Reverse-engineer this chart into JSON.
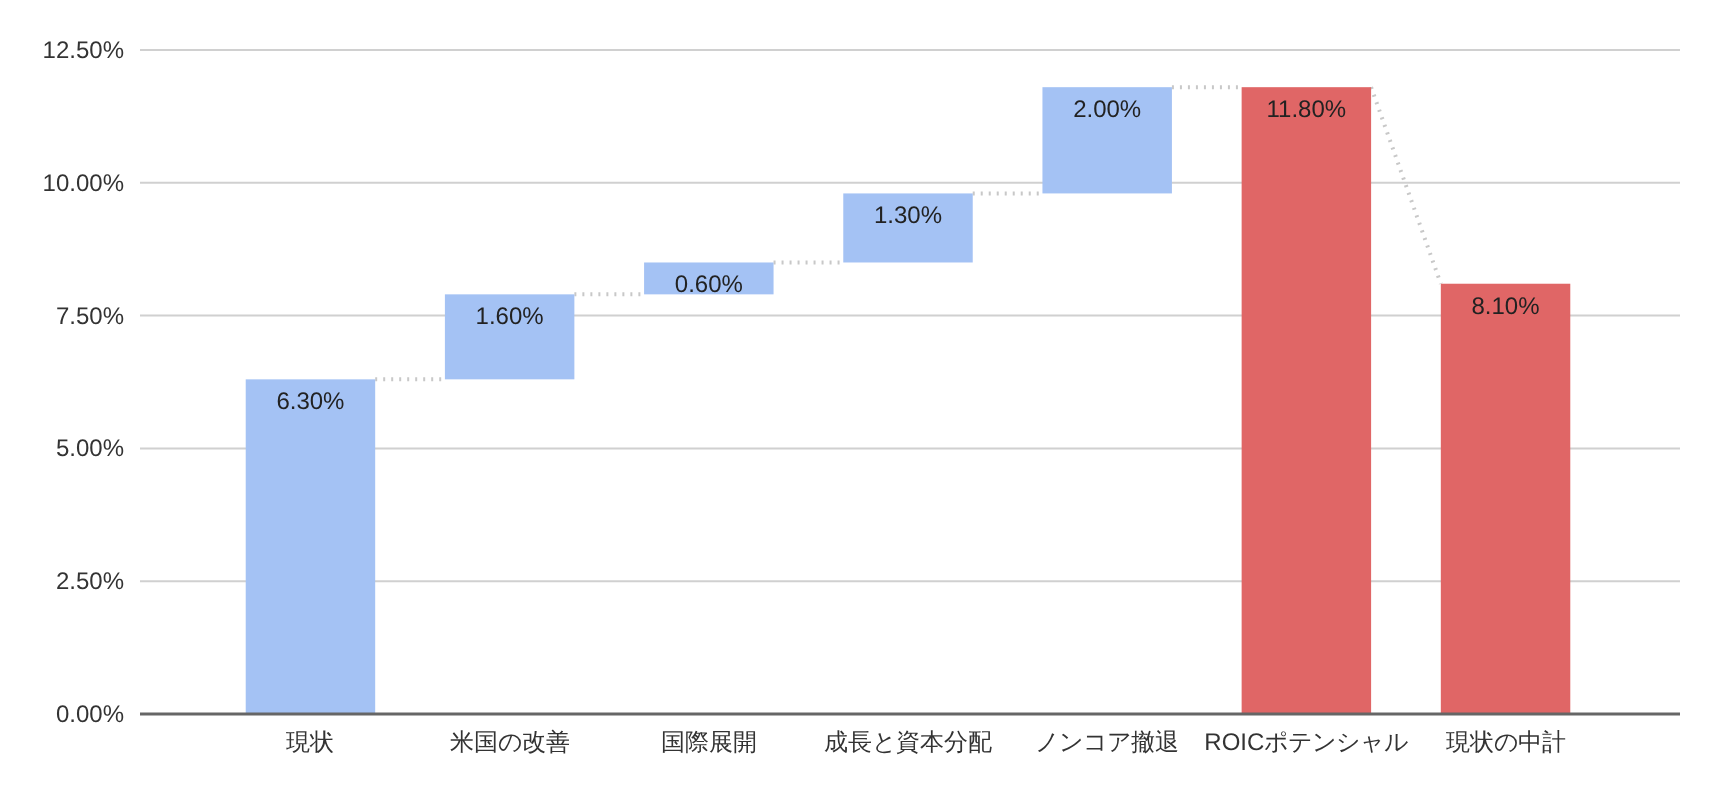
{
  "chart_data": {
    "type": "bar",
    "categories": [
      "現状",
      "米国の改善",
      "国際展開",
      "成長と資本分配",
      "ノンコア撤退",
      "ROICポテンシャル",
      "現状の中計"
    ],
    "values": [
      6.3,
      1.6,
      0.6,
      1.3,
      2.0,
      11.8,
      8.1
    ],
    "base": [
      0,
      6.3,
      7.9,
      8.5,
      9.8,
      0,
      0
    ],
    "colors": [
      "#a4c2f4",
      "#a4c2f4",
      "#a4c2f4",
      "#a4c2f4",
      "#a4c2f4",
      "#e06666",
      "#e06666"
    ],
    "value_labels": [
      "6.30%",
      "1.60%",
      "0.60%",
      "1.30%",
      "2.00%",
      "11.80%",
      "8.10%"
    ],
    "ylim": [
      0,
      12.5
    ],
    "yticks": [
      {
        "value": 0,
        "label": "0.00%"
      },
      {
        "value": 2.5,
        "label": "2.50%"
      },
      {
        "value": 5,
        "label": "5.00%"
      },
      {
        "value": 7.5,
        "label": "7.50%"
      },
      {
        "value": 10,
        "label": "10.00%"
      },
      {
        "value": 12.5,
        "label": "12.50%"
      }
    ],
    "grid": "y"
  }
}
